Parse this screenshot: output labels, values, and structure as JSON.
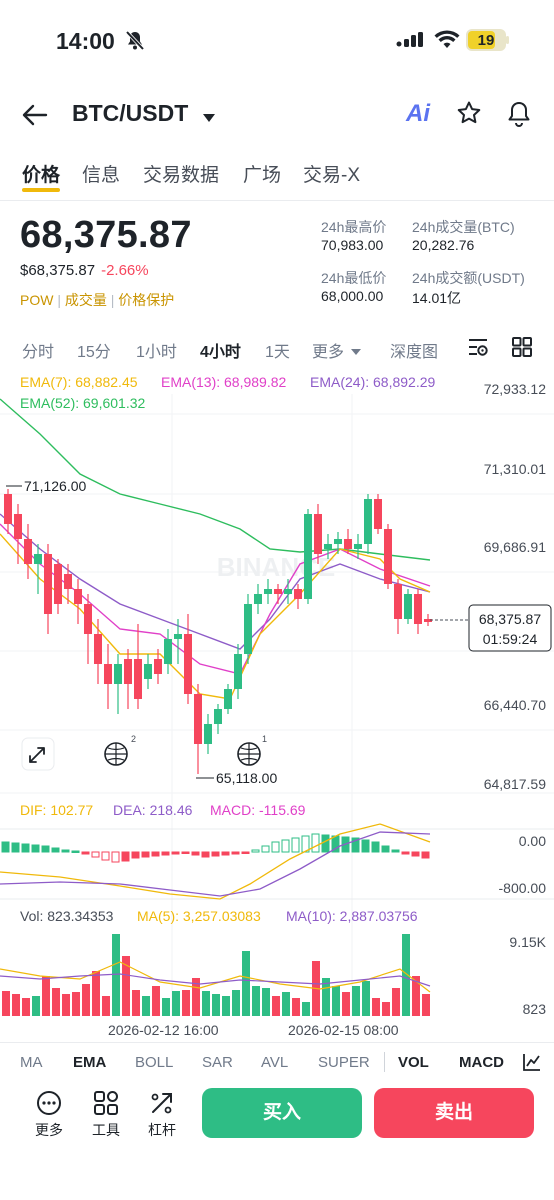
{
  "status_bar": {
    "time": "14:00",
    "battery": "19"
  },
  "header": {
    "pair": "BTC/USDT",
    "ai_label": "Ai"
  },
  "tabs": [
    {
      "label": "价格",
      "active": true
    },
    {
      "label": "信息"
    },
    {
      "label": "交易数据"
    },
    {
      "label": "广场"
    },
    {
      "label": "交易-X"
    }
  ],
  "ticker": {
    "last_price": "68,375.87",
    "usd_price": "$68,375.87",
    "change_pct": "-2.66%",
    "tags": [
      "POW",
      "成交量",
      "价格保护"
    ],
    "high_label": "24h最高价",
    "high": "70,983.00",
    "vol_btc_label": "24h成交量(BTC)",
    "vol_btc": "20,282.76",
    "low_label": "24h最低价",
    "low": "68,000.00",
    "vol_usdt_label": "24h成交额(USDT)",
    "vol_usdt": "14.01亿"
  },
  "intervals": [
    {
      "label": "分时"
    },
    {
      "label": "15分"
    },
    {
      "label": "1小时"
    },
    {
      "label": "4小时",
      "active": true
    },
    {
      "label": "1天"
    },
    {
      "label": "更多"
    },
    {
      "label": "深度图"
    }
  ],
  "main_chart": {
    "ema_legend": [
      {
        "label": "EMA(7): 68,882.45",
        "color": "#f0b90b"
      },
      {
        "label": "EMA(13): 68,989.82",
        "color": "#e040c8"
      },
      {
        "label": "EMA(24): 68,892.29",
        "color": "#8e5cc8"
      },
      {
        "label": "EMA(52): 69,601.32",
        "color": "#2ebd5e"
      }
    ],
    "y_ticks": [
      "72,933.12",
      "71,310.01",
      "69,686.91",
      "66,440.70",
      "64,817.59"
    ],
    "current_price": "68,375.87",
    "countdown": "01:59:24",
    "high_annot": "71,126.00",
    "low_annot": "65,118.00",
    "watermark": "BINANCE",
    "badge_counts": [
      "2",
      "1"
    ]
  },
  "macd": {
    "dif": "DIF: 102.77",
    "dea": "DEA: 218.46",
    "macd": "MACD: -115.69",
    "y_ticks": [
      "0.00",
      "-800.00"
    ]
  },
  "volume": {
    "vol": "Vol: 823.34353",
    "ma5": "MA(5): 3,257.03083",
    "ma10": "MA(10): 2,887.03756",
    "y_ticks": [
      "9.15K",
      "823"
    ],
    "x_labels": [
      "2026-02-12 16:00",
      "2026-02-15 08:00"
    ]
  },
  "indicator_tabs": [
    {
      "label": "MA"
    },
    {
      "label": "EMA",
      "active": true
    },
    {
      "label": "BOLL"
    },
    {
      "label": "SAR"
    },
    {
      "label": "AVL"
    },
    {
      "label": "SUPER"
    },
    {
      "label": "VOL",
      "active": true
    },
    {
      "label": "MACD",
      "active": true
    }
  ],
  "bottom_bar": {
    "more_label": "更多",
    "tools_label": "工具",
    "leverage_label": "杠杆",
    "buy_label": "买入",
    "sell_label": "卖出"
  },
  "colors": {
    "up": "#2ebd85",
    "down": "#f6465d",
    "accent": "#f0b90b"
  }
}
